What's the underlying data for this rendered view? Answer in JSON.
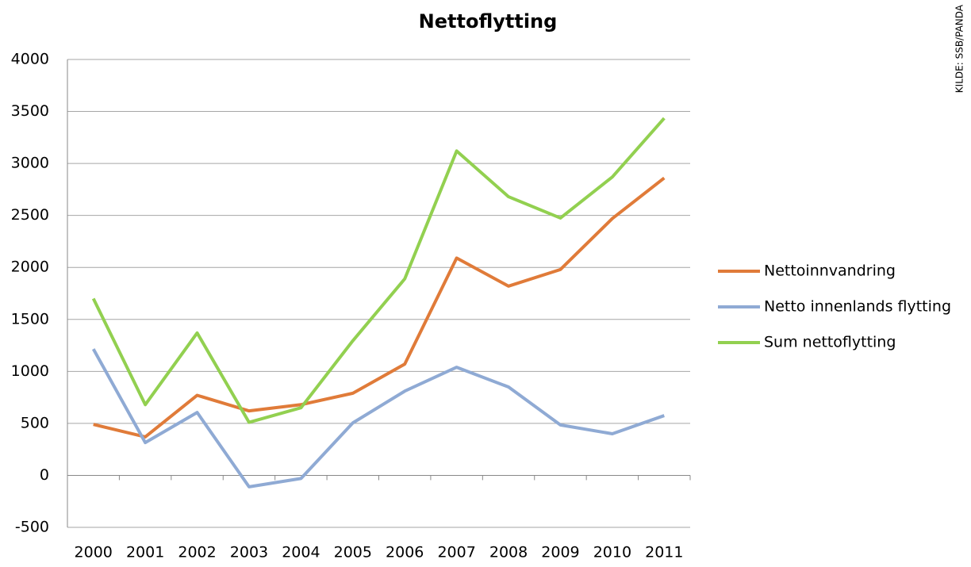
{
  "chart_data": {
    "type": "line",
    "title": "Nettoflytting",
    "source": "KILDE: SSB/PANDA",
    "categories": [
      "2000",
      "2001",
      "2002",
      "2003",
      "2004",
      "2005",
      "2006",
      "2007",
      "2008",
      "2009",
      "2010",
      "2011"
    ],
    "series": [
      {
        "name": "Nettoinnvandring",
        "color": "#e07b39",
        "values": [
          490,
          370,
          770,
          620,
          680,
          790,
          1070,
          2090,
          1820,
          1980,
          2470,
          2860
        ]
      },
      {
        "name": "Netto innenlands flytting",
        "color": "#8faad4",
        "values": [
          1215,
          315,
          605,
          -110,
          -30,
          505,
          810,
          1040,
          850,
          485,
          400,
          575
        ]
      },
      {
        "name": "Sum nettoflytting",
        "color": "#92d050",
        "values": [
          1700,
          680,
          1370,
          510,
          650,
          1295,
          1890,
          3120,
          2680,
          2475,
          2870,
          3435
        ]
      }
    ],
    "ylim": [
      -500,
      4000
    ],
    "yticks": [
      -500,
      0,
      500,
      1000,
      1500,
      2000,
      2500,
      3000,
      3500,
      4000
    ],
    "grid": true,
    "legend": "right"
  }
}
